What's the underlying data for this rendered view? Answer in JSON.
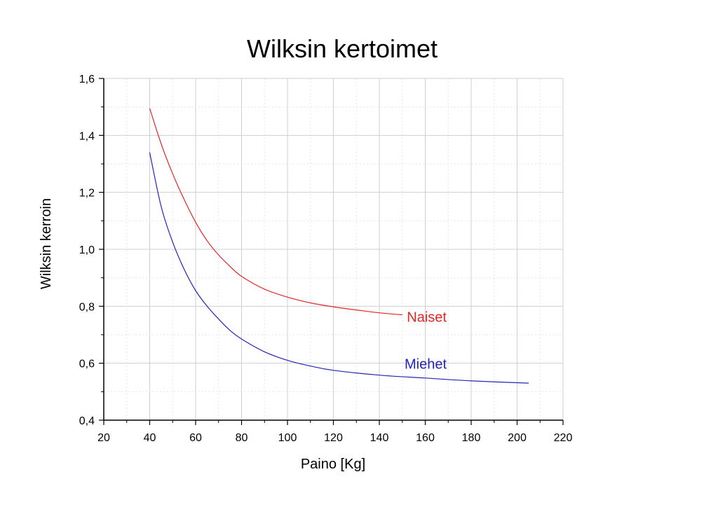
{
  "chart_data": {
    "type": "line",
    "title": "Wilksin kertoimet",
    "xlabel": "Paino [Kg]",
    "ylabel": "Wilksin kerroin",
    "xlim": [
      20,
      220
    ],
    "ylim": [
      0.4,
      1.6
    ],
    "x_ticks": [
      "20",
      "40",
      "60",
      "80",
      "100",
      "120",
      "140",
      "160",
      "180",
      "200",
      "220"
    ],
    "y_ticks": [
      "0,4",
      "0,6",
      "0,8",
      "1,0",
      "1,2",
      "1,4",
      "1,6"
    ],
    "grid": true,
    "series": [
      {
        "name": "Naiset",
        "color": "#e32626",
        "x": [
          40,
          45,
          50,
          55,
          60,
          65,
          70,
          75,
          80,
          90,
          100,
          110,
          120,
          130,
          140,
          150
        ],
        "y": [
          1.495,
          1.37,
          1.265,
          1.175,
          1.095,
          1.03,
          0.98,
          0.94,
          0.905,
          0.86,
          0.832,
          0.812,
          0.798,
          0.787,
          0.777,
          0.77
        ]
      },
      {
        "name": "Miehet",
        "color": "#2424b8",
        "x": [
          40,
          45,
          50,
          55,
          60,
          65,
          70,
          75,
          80,
          90,
          100,
          110,
          120,
          140,
          160,
          180,
          205
        ],
        "y": [
          1.34,
          1.15,
          1.025,
          0.93,
          0.855,
          0.8,
          0.755,
          0.715,
          0.685,
          0.64,
          0.61,
          0.59,
          0.575,
          0.558,
          0.548,
          0.538,
          0.53
        ]
      }
    ]
  }
}
